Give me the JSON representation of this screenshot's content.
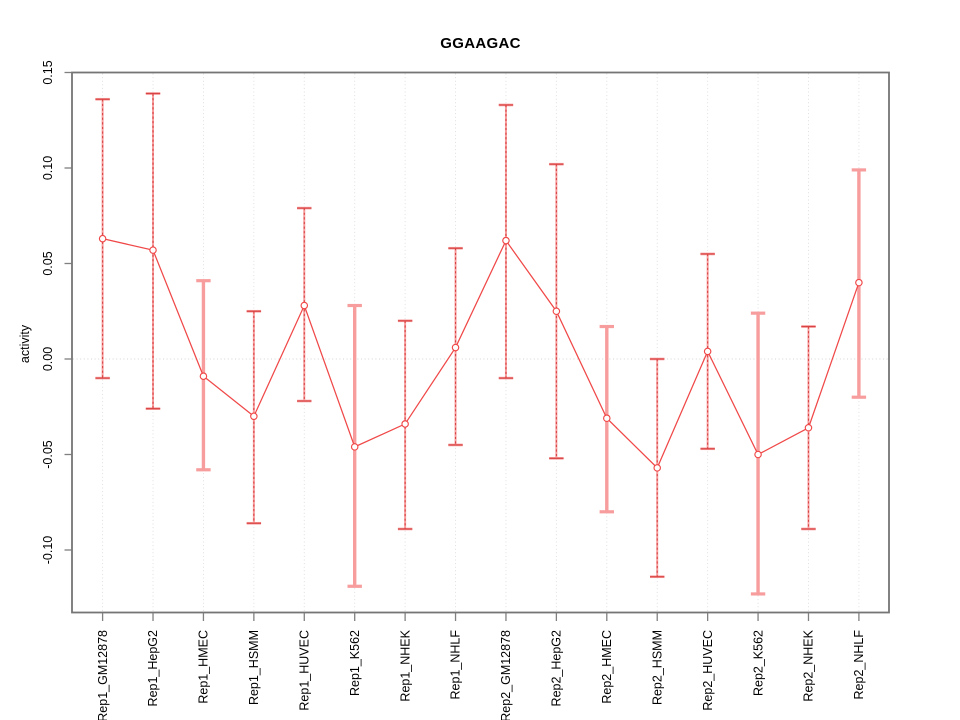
{
  "chart_data": {
    "type": "line",
    "title": "GGAAGAC",
    "xlabel": "",
    "ylabel": "activity",
    "ylim": [
      -0.133,
      0.15
    ],
    "grid": "dotted vertical gridline at each category; dotted horizontal line at y=0",
    "legend_position": "none",
    "y_tick_labels": [
      "0.15",
      "0.10",
      "0.05",
      "0.00",
      "-0.05",
      "-0.10"
    ],
    "y_tick_values": [
      0.15,
      0.1,
      0.05,
      0.0,
      -0.05,
      -0.1
    ],
    "categories": [
      "Rep1_GM12878",
      "Rep1_HepG2",
      "Rep1_HMEC",
      "Rep1_HSMM",
      "Rep1_HUVEC",
      "Rep1_K562",
      "Rep1_NHEK",
      "Rep1_NHLF",
      "Rep2_GM12878",
      "Rep2_HepG2",
      "Rep2_HMEC",
      "Rep2_HSMM",
      "Rep2_HUVEC",
      "Rep2_K562",
      "Rep2_NHEK",
      "Rep2_NHLF"
    ],
    "series": [
      {
        "name": "activity",
        "values": [
          0.063,
          0.057,
          -0.009,
          -0.03,
          0.028,
          -0.046,
          -0.034,
          0.006,
          0.062,
          0.025,
          -0.031,
          -0.057,
          0.004,
          -0.05,
          -0.036,
          0.04
        ],
        "ci_lower": [
          -0.01,
          -0.026,
          -0.058,
          -0.086,
          -0.022,
          -0.119,
          -0.089,
          -0.045,
          -0.01,
          -0.052,
          -0.08,
          -0.114,
          -0.047,
          -0.123,
          -0.089,
          -0.02
        ],
        "ci_upper": [
          0.136,
          0.139,
          0.041,
          0.025,
          0.079,
          0.028,
          0.02,
          0.058,
          0.133,
          0.102,
          0.017,
          0.0,
          0.055,
          0.024,
          0.017,
          0.099
        ],
        "bar_thick_pink": [
          false,
          false,
          true,
          false,
          false,
          true,
          false,
          false,
          false,
          false,
          true,
          false,
          false,
          true,
          false,
          true
        ]
      }
    ],
    "colors": {
      "series_line": "#f04848",
      "marker_stroke": "#f04848",
      "marker_fill": "#ffffff",
      "error_bar_pink": "#f79d9d",
      "error_bar_dark_core": "#d84343",
      "gridline": "#dcdcdc",
      "zero_line": "#d4d4d4",
      "axis_box": "#757575",
      "tick_mark": "#808080",
      "text": "#000000",
      "background": "#ffffff"
    }
  }
}
